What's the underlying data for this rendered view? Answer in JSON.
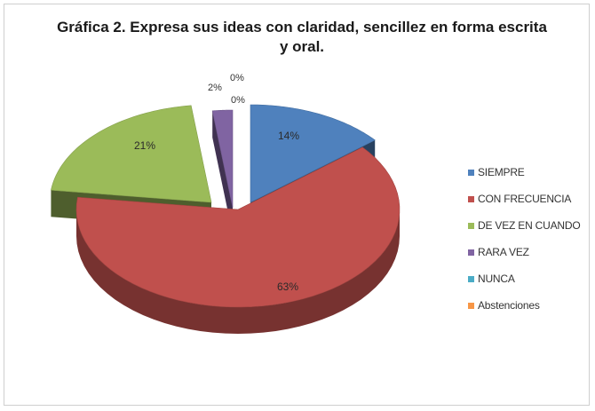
{
  "chart_data": {
    "type": "pie",
    "title": "Gráfica 2. Expresa sus ideas con claridad, sencillez en forma escrita y oral.",
    "legend_position": "right",
    "slices": [
      {
        "name": "SIEMPRE",
        "value": 14,
        "label": "14%",
        "color": "#4f81bd"
      },
      {
        "name": "CON FRECUENCIA",
        "value": 63,
        "label": "63%",
        "color": "#c0504d"
      },
      {
        "name": "DE VEZ EN CUANDO",
        "value": 21,
        "label": "21%",
        "color": "#9bbb59"
      },
      {
        "name": "RARA VEZ",
        "value": 2,
        "label": "2%",
        "color": "#8064a2"
      },
      {
        "name": "NUNCA",
        "value": 0,
        "label": "0%",
        "color": "#4bacc6"
      },
      {
        "name": "Abstenciones",
        "value": 0,
        "label": "0%",
        "color": "#f79646"
      }
    ]
  }
}
